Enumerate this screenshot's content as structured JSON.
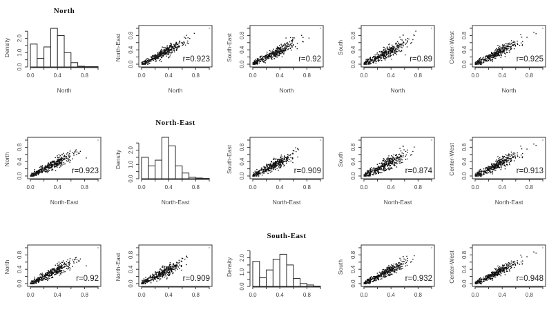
{
  "chart_data": {
    "type": "scatter",
    "layout": "3x5 grid of panels (scatterplot matrix rows 1-3 of 5 regions)",
    "regions": [
      "North",
      "North-East",
      "South-East",
      "South",
      "Center-West"
    ],
    "axis_range": [
      0,
      1
    ],
    "tick_labels": [
      "0.0",
      "0.4",
      "0.8"
    ],
    "histogram_ylabel": "Density",
    "histogram_yticks": [
      "0.0",
      "1.0",
      "2.0"
    ],
    "histogram_ylim": [
      0,
      2.8
    ],
    "histogram_bins": [
      0.0,
      0.1,
      0.2,
      0.3,
      0.4,
      0.5,
      0.6,
      0.7,
      0.8,
      0.9,
      1.0
    ],
    "rows": [
      {
        "title": "North",
        "panels": [
          {
            "kind": "histogram",
            "xlabel": "North",
            "ylabel": "Density",
            "densities": [
              1.6,
              0.6,
              1.4,
              2.7,
              2.2,
              1.0,
              0.3,
              0.05,
              0.02,
              0.02
            ]
          },
          {
            "kind": "scatter",
            "xlabel": "North",
            "ylabel": "North-East",
            "r_label": "r=0.923",
            "r": 0.923
          },
          {
            "kind": "scatter",
            "xlabel": "North",
            "ylabel": "South-East",
            "r_label": "r=0.92",
            "r": 0.92
          },
          {
            "kind": "scatter",
            "xlabel": "North",
            "ylabel": "South",
            "r_label": "r=0.89",
            "r": 0.89
          },
          {
            "kind": "scatter",
            "xlabel": "North",
            "ylabel": "Center-West",
            "r_label": "r=0.925",
            "r": 0.925
          }
        ]
      },
      {
        "title": "North-East",
        "panels": [
          {
            "kind": "scatter",
            "xlabel": "North-East",
            "ylabel": "North",
            "r_label": "r=0.923",
            "r": 0.923
          },
          {
            "kind": "histogram",
            "xlabel": "North-East",
            "ylabel": "Density",
            "densities": [
              1.5,
              0.9,
              1.3,
              2.9,
              2.3,
              0.9,
              0.4,
              0.1,
              0.05,
              0.02
            ]
          },
          {
            "kind": "scatter",
            "xlabel": "North-East",
            "ylabel": "South-East",
            "r_label": "r=0.909",
            "r": 0.909
          },
          {
            "kind": "scatter",
            "xlabel": "North-East",
            "ylabel": "South",
            "r_label": "r=0.874",
            "r": 0.874
          },
          {
            "kind": "scatter",
            "xlabel": "North-East",
            "ylabel": "Center-West",
            "r_label": "r=0.913",
            "r": 0.913
          }
        ]
      },
      {
        "title": "South-East",
        "panels": [
          {
            "kind": "scatter",
            "xlabel": "",
            "ylabel": "North",
            "r_label": "r=0.92",
            "r": 0.92
          },
          {
            "kind": "scatter",
            "xlabel": "",
            "ylabel": "North-East",
            "r_label": "r=0.909",
            "r": 0.909
          },
          {
            "kind": "histogram",
            "xlabel": "",
            "ylabel": "Density",
            "densities": [
              1.75,
              0.6,
              1.15,
              1.9,
              2.25,
              1.5,
              0.55,
              0.2,
              0.1,
              0.02
            ]
          },
          {
            "kind": "scatter",
            "xlabel": "",
            "ylabel": "South",
            "r_label": "r=0.932",
            "r": 0.932
          },
          {
            "kind": "scatter",
            "xlabel": "",
            "ylabel": "Center-West",
            "r_label": "r=0.948",
            "r": 0.948
          }
        ]
      }
    ]
  }
}
